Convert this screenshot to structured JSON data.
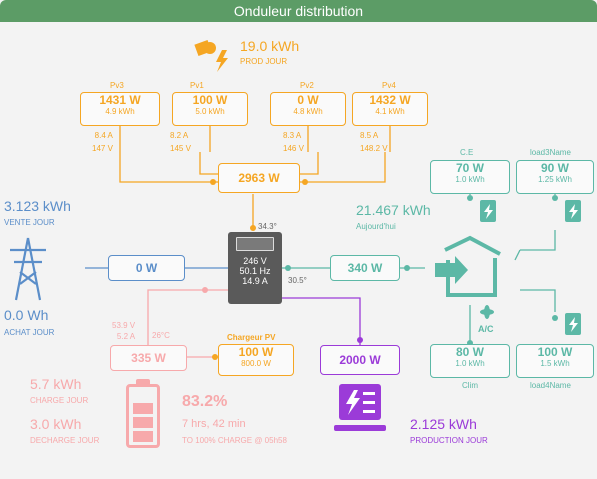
{
  "header": {
    "title": "Onduleur distribution"
  },
  "solar": {
    "total_kwh": "19.0 kWh",
    "total_label": "PROD JOUR",
    "strings": [
      {
        "name": "Pv3",
        "power": "1431 W",
        "energy": "4.9 kWh",
        "current": "8.4 A",
        "voltage": "147 V"
      },
      {
        "name": "Pv1",
        "power": "100 W",
        "energy": "5.0 kWh",
        "current": "8.2 A",
        "voltage": "145 V"
      },
      {
        "name": "Pv2",
        "power": "0 W",
        "energy": "4.8 kWh",
        "current": "8.3 A",
        "voltage": "146 V"
      },
      {
        "name": "Pv4",
        "power": "1432 W",
        "energy": "4.1 kWh",
        "current": "8.5 A",
        "voltage": "148.2 V"
      }
    ],
    "combined_power": "2963 W"
  },
  "inverter": {
    "voltage": "246 V",
    "frequency": "50.1 Hz",
    "current": "14.9 A",
    "temp_top": "34.3°",
    "temp_right": "30.5°"
  },
  "grid": {
    "sell_value": "3.123 kWh",
    "sell_label": "VENTE JOUR",
    "buy_value": "0.0 Wh",
    "buy_label": "ACHAT JOUR",
    "power": "0 W"
  },
  "home": {
    "power": "340 W",
    "today_value": "21.467 kWh",
    "today_label": "Aujourd'hui"
  },
  "loads": [
    {
      "name": "C.E",
      "power": "70 W",
      "energy": "1.0 kWh"
    },
    {
      "name": "load3Name",
      "power": "90 W",
      "energy": "1.25 kWh"
    },
    {
      "name": "Clim",
      "power": "80 W",
      "energy": "1.0 kWh"
    },
    {
      "name": "load4Name",
      "power": "100 W",
      "energy": "1.5 kWh"
    }
  ],
  "aux_icon_text": "A/C",
  "battery": {
    "voltage": "53.9 V",
    "current": "5.2 A",
    "temp": "26°C",
    "power": "335 W",
    "charge_value": "5.7 kWh",
    "charge_label": "CHARGE JOUR",
    "discharge_value": "3.0 kWh",
    "discharge_label": "DECHARGE JOUR",
    "soc": "83.2%",
    "soc_value": 83.2,
    "time_left": "7 hrs, 42 min",
    "full_text": "TO 100% CHARGE @ 05h58"
  },
  "charger": {
    "label": "Chargeur PV",
    "power": "100 W",
    "energy": "800.0 W"
  },
  "generator": {
    "power": "2000 W",
    "value": "2.125 kWh",
    "label": "PRODUCTION JOUR"
  },
  "colors": {
    "solar": "#f5a623",
    "grid": "#5b8ec9",
    "home": "#5cb8a6",
    "battery": "#f7a9ab",
    "gen": "#9b3bd8",
    "inverter": "#5a5a5a"
  }
}
